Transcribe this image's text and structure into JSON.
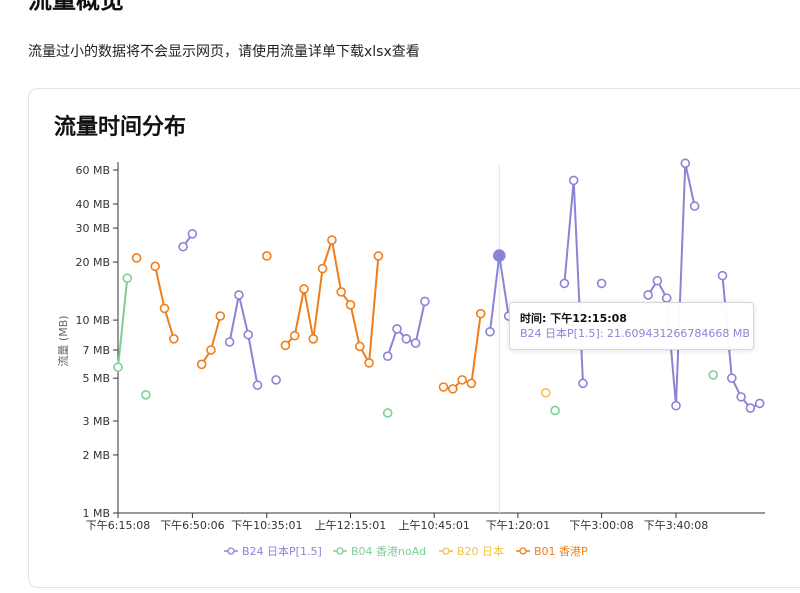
{
  "page": {
    "heading": "流量概览",
    "note": "流量过小的数据将不会显示网页，请使用流量详单下载xlsx查看"
  },
  "card": {
    "title": "流量时间分布"
  },
  "tooltip": {
    "time_label": "时间: 下午12:15:08",
    "value_label": "B24 日本P[1.5]: 21.609431266784668 MB"
  },
  "colors": {
    "B24": "#8a84d6",
    "B04": "#7dcf95",
    "B20": "#f6c142",
    "B01": "#f07d1a"
  },
  "chart_data": {
    "type": "line",
    "xlabel": "",
    "ylabel": "流量 (MB)",
    "yscale": "log",
    "ylim": [
      1,
      60
    ],
    "yticks": [
      "60 MB",
      "40 MB",
      "30 MB",
      "20 MB",
      "10 MB",
      "7 MB",
      "5 MB",
      "3 MB",
      "2 MB",
      "1 MB"
    ],
    "ytick_values": [
      60,
      40,
      30,
      20,
      10,
      7,
      5,
      3,
      2,
      1
    ],
    "xticks": [
      "下午6:15:08",
      "下午6:50:06",
      "下午10:35:01",
      "上午12:15:01",
      "上午10:45:01",
      "下午1:20:01",
      "下午3:00:08",
      "下午3:40:08"
    ],
    "x_count": 70,
    "xtick_indices": [
      0,
      8,
      16,
      25,
      34,
      43,
      52,
      60
    ],
    "highlight": {
      "series": "B24 日本P[1.5]",
      "x_index": 41,
      "value": 21.609431266784668
    },
    "legend_position": "bottom",
    "grid": false,
    "series": [
      {
        "name": "B24 日本P[1.5]",
        "key": "B24",
        "points": [
          [
            7,
            24
          ],
          [
            8,
            28
          ],
          [
            12,
            7.7
          ],
          [
            13,
            13.5
          ],
          [
            14,
            8.4
          ],
          [
            15,
            4.6
          ],
          [
            17,
            4.9
          ],
          [
            29,
            6.5
          ],
          [
            30,
            9
          ],
          [
            31,
            8
          ],
          [
            32,
            7.6
          ],
          [
            33,
            12.5
          ],
          [
            40,
            8.7
          ],
          [
            41,
            21.6
          ],
          [
            42,
            10.5
          ],
          [
            48,
            15.5
          ],
          [
            49,
            53
          ],
          [
            50,
            4.7
          ],
          [
            52,
            15.5
          ],
          [
            57,
            13.5
          ],
          [
            58,
            16
          ],
          [
            59,
            13
          ],
          [
            60,
            3.6
          ],
          [
            61,
            65
          ],
          [
            62,
            39
          ],
          [
            65,
            17
          ],
          [
            66,
            5
          ],
          [
            67,
            4
          ],
          [
            68,
            3.5
          ],
          [
            69,
            3.7
          ]
        ],
        "breaks": [
          [
            8,
            12
          ],
          [
            15,
            17
          ],
          [
            17,
            29
          ],
          [
            33,
            40
          ],
          [
            42,
            48
          ],
          [
            50,
            52
          ],
          [
            52,
            57
          ],
          [
            62,
            65
          ]
        ]
      },
      {
        "name": "B04 香港noAd",
        "key": "B04",
        "points": [
          [
            0,
            5.7
          ],
          [
            1,
            16.5
          ],
          [
            3,
            4.1
          ],
          [
            29,
            3.3
          ],
          [
            47,
            3.4
          ],
          [
            64,
            5.2
          ]
        ],
        "breaks": [
          [
            1,
            3
          ],
          [
            3,
            29
          ],
          [
            29,
            47
          ],
          [
            47,
            64
          ]
        ]
      },
      {
        "name": "B20 日本",
        "key": "B20",
        "points": [
          [
            46,
            4.2
          ]
        ],
        "breaks": []
      },
      {
        "name": "B01 香港P",
        "key": "B01",
        "points": [
          [
            2,
            21
          ],
          [
            4,
            19
          ],
          [
            5,
            11.5
          ],
          [
            6,
            8
          ],
          [
            9,
            5.9
          ],
          [
            10,
            7
          ],
          [
            11,
            10.5
          ],
          [
            16,
            21.5
          ],
          [
            18,
            7.4
          ],
          [
            19,
            8.3
          ],
          [
            20,
            14.5
          ],
          [
            21,
            8
          ],
          [
            22,
            18.5
          ],
          [
            23,
            26
          ],
          [
            24,
            14
          ],
          [
            25,
            12
          ],
          [
            26,
            7.3
          ],
          [
            27,
            6
          ],
          [
            28,
            21.5
          ],
          [
            35,
            4.5
          ],
          [
            36,
            4.4
          ],
          [
            37,
            4.9
          ],
          [
            38,
            4.7
          ],
          [
            39,
            10.8
          ]
        ],
        "breaks": [
          [
            2,
            4
          ],
          [
            6,
            9
          ],
          [
            11,
            16
          ],
          [
            16,
            18
          ],
          [
            28,
            35
          ]
        ]
      }
    ]
  }
}
